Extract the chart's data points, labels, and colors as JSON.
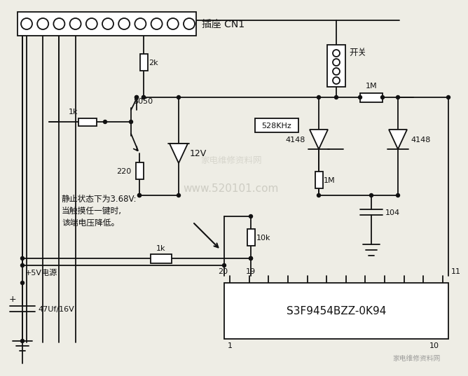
{
  "bg_color": "#eeede5",
  "line_color": "#111111",
  "cn1_label": "插座 CN1",
  "switch_label": "开关",
  "vcc_label": "+5V电源",
  "cap_label": "47Uf/16V",
  "ic_label": "S3F9454BZZ-0K94",
  "annotation_line1": "静止状态下为3.68V:",
  "annotation_line2": "当触摸任一键时,",
  "annotation_line3": "该端电压降低。",
  "freq_label": "528KHz",
  "r2k": "2k",
  "r1k_base": "1k",
  "r220": "220",
  "r1k_line": "1k",
  "r10k": "10k",
  "r1M_h": "1M",
  "r1M_v": "1M",
  "c104": "104",
  "v12": "12V",
  "t8050": "8050",
  "d4148_l": "4148",
  "d4148_r": "4148",
  "node19": "19",
  "node20": "20",
  "node11": "11",
  "node1": "1",
  "node10": "10",
  "watermark": "www.520101.com",
  "logo": "家电维修资料网"
}
